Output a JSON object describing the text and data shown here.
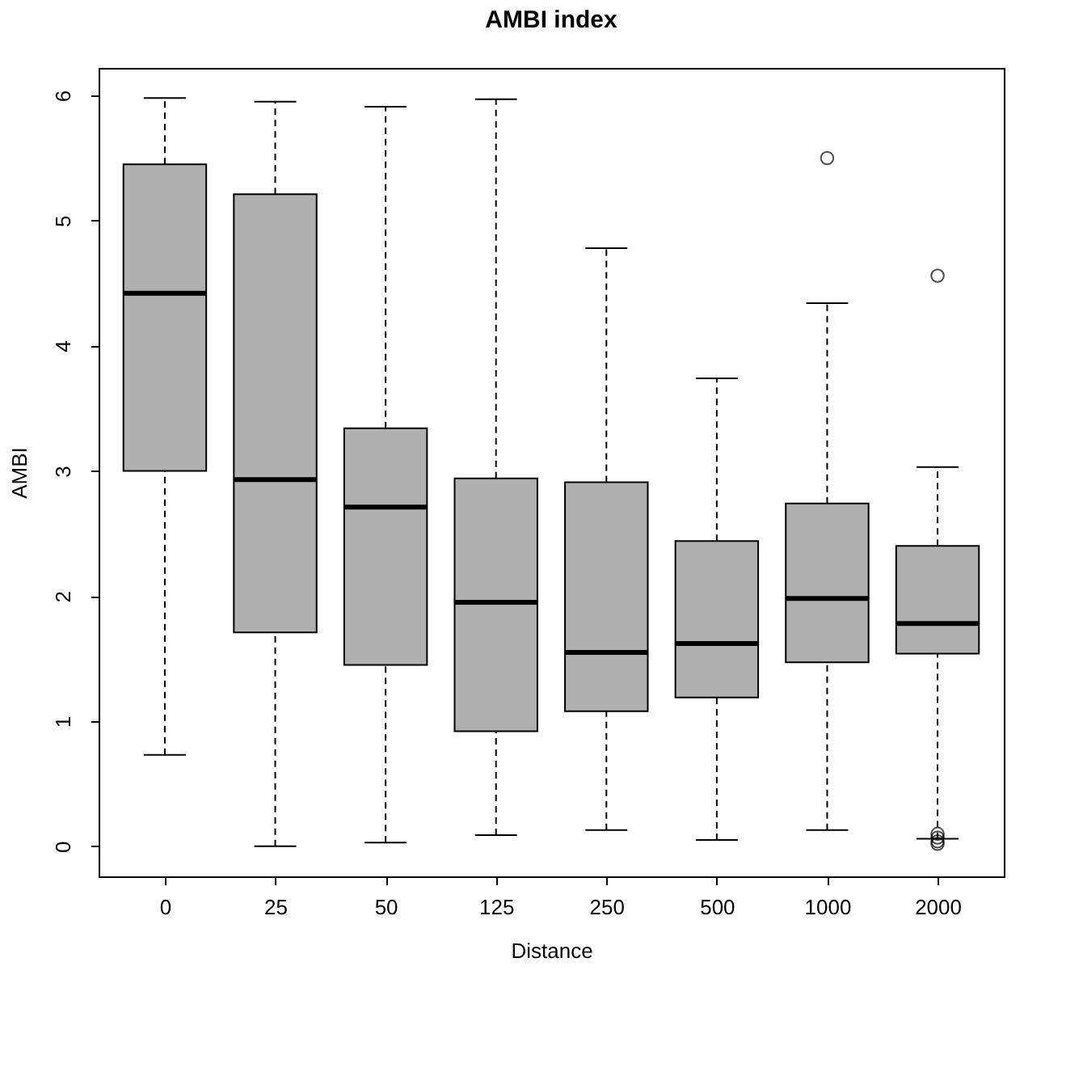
{
  "chart_data": {
    "type": "box",
    "title": "AMBI index",
    "xlabel": "Distance",
    "ylabel": "AMBI",
    "categories": [
      "0",
      "25",
      "50",
      "125",
      "250",
      "500",
      "1000",
      "2000"
    ],
    "colors": [
      "#b0b0b0",
      "#b0b0b0",
      "#b0b0b0",
      "#b0b0b0",
      "#b0b0b0",
      "#b0b0b0",
      "#b0b0b0",
      "#b0b0b0"
    ],
    "boxes": [
      {
        "low": 0.73,
        "q1": 3.0,
        "median": 4.42,
        "q3": 5.45,
        "high": 5.98
      },
      {
        "low": 0.0,
        "q1": 1.71,
        "median": 2.93,
        "q3": 5.21,
        "high": 5.95
      },
      {
        "low": 0.03,
        "q1": 1.45,
        "median": 2.71,
        "q3": 3.34,
        "high": 5.91
      },
      {
        "low": 0.09,
        "q1": 0.92,
        "median": 1.95,
        "q3": 2.94,
        "high": 5.97
      },
      {
        "low": 0.13,
        "q1": 1.08,
        "median": 1.55,
        "q3": 2.91,
        "high": 4.78
      },
      {
        "low": 0.05,
        "q1": 1.19,
        "median": 1.62,
        "q3": 2.44,
        "high": 3.74
      },
      {
        "low": 0.13,
        "q1": 1.47,
        "median": 1.98,
        "q3": 2.74,
        "high": 4.34,
        "outliers": [
          5.5
        ]
      },
      {
        "low": 0.06,
        "q1": 1.54,
        "median": 1.78,
        "q3": 2.4,
        "high": 3.03,
        "outliers": [
          4.56,
          0.1,
          0.07,
          0.04,
          0.02
        ]
      }
    ],
    "ylim": [
      -0.24,
      6.22
    ],
    "yticks": [
      0,
      1,
      2,
      3,
      4,
      5,
      6
    ]
  }
}
